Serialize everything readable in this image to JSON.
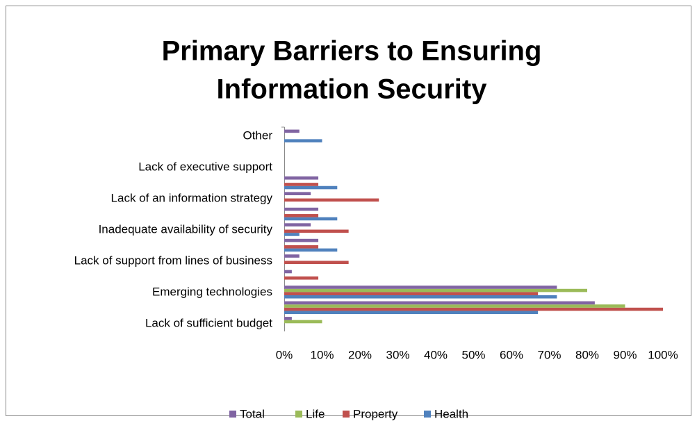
{
  "chart_data": {
    "type": "barh",
    "title": [
      "Primary Barriers to Ensuring",
      "Information Security"
    ],
    "categories": [
      "Lack of sufficient budget",
      null,
      "Emerging technologies",
      null,
      "Lack of support from lines of business",
      null,
      "Inadequate availability of security",
      null,
      "Lack of an information strategy",
      null,
      "Lack of executive support",
      null,
      "Other"
    ],
    "series": [
      {
        "name": "Health",
        "color": "#4f81bd",
        "values": [
          0,
          67,
          72,
          0,
          0,
          14,
          4,
          14,
          0,
          14,
          0,
          0,
          10
        ]
      },
      {
        "name": "Property",
        "color": "#c0504d",
        "values": [
          0,
          100,
          67,
          9,
          17,
          9,
          17,
          9,
          25,
          9,
          0,
          0,
          0
        ]
      },
      {
        "name": "Life",
        "color": "#9bbb59",
        "values": [
          10,
          90,
          80,
          0,
          0,
          0,
          0,
          0,
          0,
          0,
          0,
          0,
          0
        ]
      },
      {
        "name": "Total",
        "color": "#8064a2",
        "values": [
          2,
          82,
          72,
          2,
          4,
          9,
          7,
          9,
          7,
          9,
          0,
          0,
          4
        ]
      }
    ],
    "xlim": [
      0,
      100
    ],
    "xticks": [
      {
        "value": 0,
        "label": "0%"
      },
      {
        "value": 10,
        "label": "10%"
      },
      {
        "value": 20,
        "label": "20%"
      },
      {
        "value": 30,
        "label": "30%"
      },
      {
        "value": 40,
        "label": "40%"
      },
      {
        "value": 50,
        "label": "50%"
      },
      {
        "value": 60,
        "label": "60%"
      },
      {
        "value": 70,
        "label": "70%"
      },
      {
        "value": 80,
        "label": "80%"
      },
      {
        "value": 90,
        "label": "90%"
      },
      {
        "value": 100,
        "label": "100%"
      }
    ],
    "grid": false,
    "legend": "bottom"
  }
}
